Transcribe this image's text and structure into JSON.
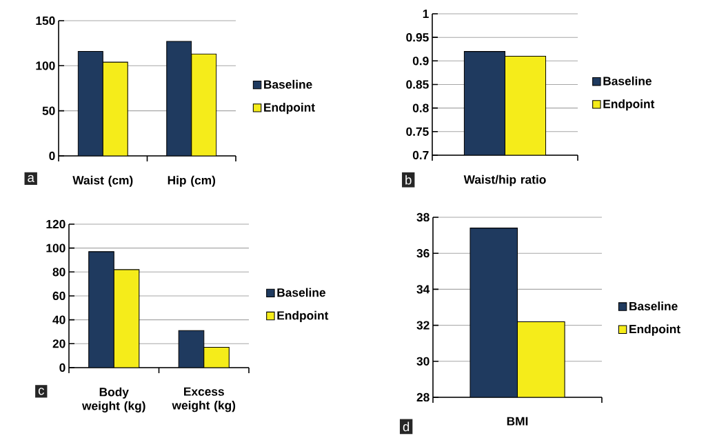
{
  "chart_data": [
    {
      "type": "bar",
      "categories": [
        "Waist (cm)",
        "Hip (cm)"
      ],
      "series": [
        {
          "name": "Baseline",
          "color": "#1f3a5f",
          "values": [
            116,
            127
          ]
        },
        {
          "name": "Endpoint",
          "color": "#f5ec1a",
          "values": [
            104,
            113
          ]
        }
      ],
      "ylim": [
        0,
        150
      ],
      "yticks": [
        0,
        50,
        100,
        150
      ],
      "grid": "y",
      "legend": "right",
      "annotations": [
        "a"
      ]
    },
    {
      "type": "bar",
      "categories": [
        "Waist/hip ratio"
      ],
      "series": [
        {
          "name": "Baseline",
          "color": "#1f3a5f",
          "values": [
            0.92
          ]
        },
        {
          "name": "Endpoint",
          "color": "#f5ec1a",
          "values": [
            0.91
          ]
        }
      ],
      "ylim": [
        0.7,
        1
      ],
      "yticks": [
        0.7,
        0.75,
        0.8,
        0.85,
        0.9,
        0.95,
        1
      ],
      "grid": "y",
      "legend": "right",
      "annotations": [
        "b"
      ]
    },
    {
      "type": "bar",
      "categories": [
        "Body weight (kg)",
        "Excess weight (kg)"
      ],
      "series": [
        {
          "name": "Baseline",
          "color": "#1f3a5f",
          "values": [
            97,
            31
          ]
        },
        {
          "name": "Endpoint",
          "color": "#f5ec1a",
          "values": [
            82,
            17
          ]
        }
      ],
      "ylim": [
        0,
        120
      ],
      "yticks": [
        0,
        20,
        40,
        60,
        80,
        100,
        120
      ],
      "grid": "y",
      "legend": "right",
      "annotations": [
        "c"
      ]
    },
    {
      "type": "bar",
      "categories": [
        "BMI"
      ],
      "series": [
        {
          "name": "Baseline",
          "color": "#1f3a5f",
          "values": [
            37.4
          ]
        },
        {
          "name": "Endpoint",
          "color": "#f5ec1a",
          "values": [
            32.2
          ]
        }
      ],
      "ylim": [
        28,
        38
      ],
      "yticks": [
        28,
        30,
        32,
        34,
        36,
        38
      ],
      "grid": "y",
      "legend": "right",
      "annotations": [
        "d"
      ]
    }
  ]
}
